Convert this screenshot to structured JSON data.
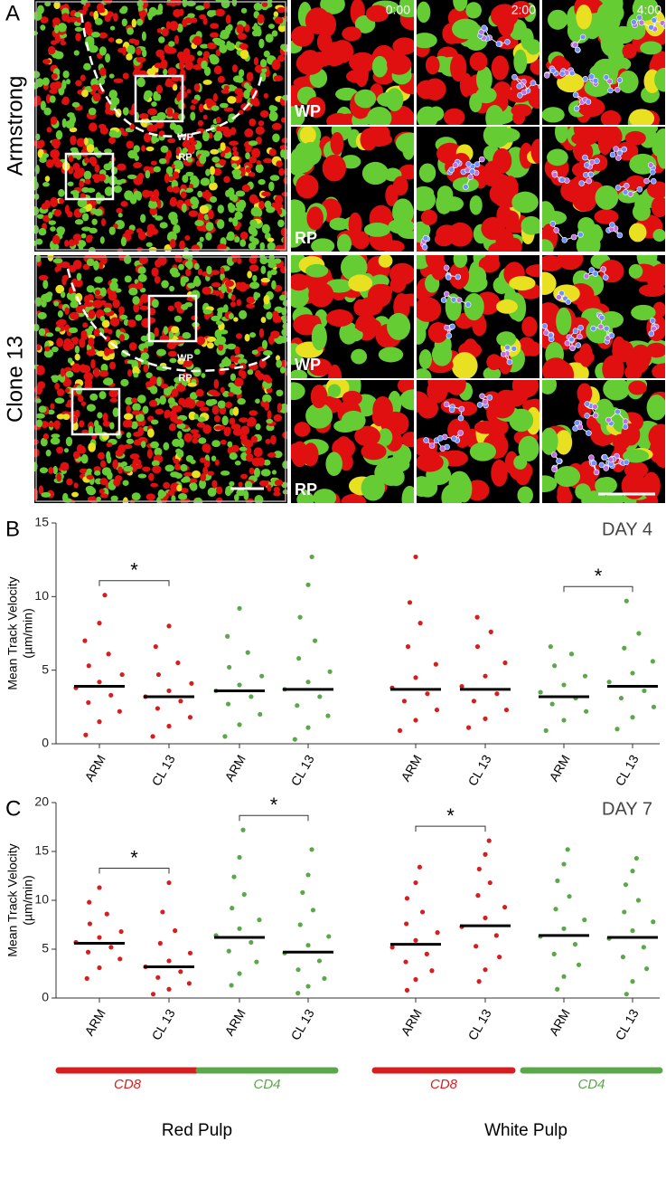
{
  "panel_a": {
    "label": "A",
    "times": [
      "0:00",
      "2:00",
      "4:00"
    ],
    "rows": [
      {
        "name": "Armstrong",
        "overview": [
          "WP",
          "RP"
        ],
        "tiles": [
          "WP",
          "RP"
        ]
      },
      {
        "name": "Clone 13",
        "overview": [
          "WP",
          "RP"
        ],
        "tiles": [
          "WP",
          "RP"
        ]
      }
    ]
  },
  "chart_data": [
    {
      "type": "strip",
      "panel": "B",
      "title": "DAY 4",
      "ylabel": [
        "Mean Track Velocity",
        "(µm/min)"
      ],
      "ylim": [
        0,
        15
      ],
      "yticks": [
        0,
        5,
        10,
        15
      ],
      "categories": [
        "ARM",
        "CL 13",
        "ARM",
        "CL 13",
        "ARM",
        "CL 13",
        "ARM",
        "CL 13"
      ],
      "groups": [
        {
          "color": "#d71e1e",
          "mean": 3.9,
          "points": [
            0.6,
            1.5,
            2.2,
            2.8,
            3.3,
            3.8,
            4.2,
            4.7,
            5.3,
            6.1,
            7.0,
            8.2,
            10.1
          ]
        },
        {
          "color": "#d71e1e",
          "mean": 3.2,
          "points": [
            0.5,
            1.2,
            1.8,
            2.4,
            2.9,
            3.2,
            3.6,
            4.1,
            4.7,
            5.5,
            6.6,
            8.0
          ]
        },
        {
          "color": "#5aa84a",
          "mean": 3.6,
          "points": [
            0.5,
            1.3,
            2.0,
            2.7,
            3.2,
            3.6,
            4.0,
            4.6,
            5.2,
            6.2,
            7.3,
            9.2
          ]
        },
        {
          "color": "#5aa84a",
          "mean": 3.7,
          "points": [
            0.3,
            1.1,
            1.9,
            2.6,
            3.2,
            3.7,
            4.2,
            4.9,
            5.8,
            7.0,
            8.6,
            10.8,
            12.7
          ]
        },
        {
          "color": "#d71e1e",
          "mean": 3.7,
          "points": [
            0.9,
            1.6,
            2.3,
            2.9,
            3.4,
            3.8,
            4.5,
            5.4,
            6.6,
            8.2,
            9.6,
            12.7
          ]
        },
        {
          "color": "#d71e1e",
          "mean": 3.7,
          "points": [
            1.1,
            1.7,
            2.3,
            2.9,
            3.4,
            3.9,
            4.6,
            5.5,
            6.6,
            7.6,
            8.6
          ]
        },
        {
          "color": "#5aa84a",
          "mean": 3.2,
          "points": [
            0.9,
            1.6,
            2.2,
            2.7,
            3.1,
            3.5,
            4.0,
            4.6,
            5.3,
            6.1,
            6.6
          ]
        },
        {
          "color": "#5aa84a",
          "mean": 3.9,
          "points": [
            1.0,
            1.8,
            2.5,
            3.1,
            3.6,
            4.2,
            4.8,
            5.6,
            6.5,
            7.5,
            9.7
          ]
        }
      ],
      "significance": [
        {
          "groups": [
            0,
            1
          ],
          "label": "*"
        },
        {
          "groups": [
            6,
            7
          ],
          "label": "*"
        }
      ]
    },
    {
      "type": "strip",
      "panel": "C",
      "title": "DAY 7",
      "ylabel": [
        "Mean Track Velocity",
        "(µm/min)"
      ],
      "ylim": [
        0,
        20
      ],
      "yticks": [
        0,
        5,
        10,
        15,
        20
      ],
      "categories": [
        "ARM",
        "CL 13",
        "ARM",
        "CL 13",
        "ARM",
        "CL 13",
        "ARM",
        "CL 13"
      ],
      "groups": [
        {
          "color": "#d71e1e",
          "mean": 5.6,
          "points": [
            2.0,
            3.1,
            4.0,
            4.7,
            5.2,
            5.7,
            6.2,
            6.8,
            7.6,
            8.6,
            9.8,
            11.3
          ]
        },
        {
          "color": "#d71e1e",
          "mean": 3.2,
          "points": [
            0.4,
            0.9,
            1.5,
            2.1,
            2.7,
            3.2,
            3.8,
            4.6,
            5.6,
            6.9,
            8.8,
            11.8
          ]
        },
        {
          "color": "#5aa84a",
          "mean": 6.2,
          "points": [
            1.3,
            2.5,
            3.7,
            4.8,
            5.7,
            6.4,
            7.1,
            8.0,
            9.2,
            10.6,
            12.4,
            14.4,
            17.2
          ]
        },
        {
          "color": "#5aa84a",
          "mean": 4.7,
          "points": [
            0.5,
            1.2,
            2.0,
            2.9,
            3.8,
            4.6,
            5.4,
            6.3,
            7.5,
            9.0,
            10.8,
            12.6,
            15.2
          ]
        },
        {
          "color": "#d71e1e",
          "mean": 5.5,
          "points": [
            0.8,
            1.9,
            2.8,
            3.7,
            4.5,
            5.2,
            5.9,
            6.7,
            7.6,
            8.8,
            10.2,
            11.8,
            13.4
          ]
        },
        {
          "color": "#d71e1e",
          "mean": 7.4,
          "points": [
            1.7,
            2.9,
            4.2,
            5.3,
            6.4,
            7.3,
            8.2,
            9.3,
            10.5,
            11.8,
            13.2,
            14.7,
            16.1
          ]
        },
        {
          "color": "#5aa84a",
          "mean": 6.4,
          "points": [
            0.9,
            2.2,
            3.4,
            4.5,
            5.5,
            6.3,
            7.1,
            8.0,
            9.1,
            10.4,
            12.0,
            13.7,
            15.2
          ]
        },
        {
          "color": "#5aa84a",
          "mean": 6.2,
          "points": [
            0.4,
            1.7,
            3.0,
            4.2,
            5.2,
            6.1,
            6.9,
            7.8,
            8.8,
            10.0,
            11.6,
            13.0,
            14.3
          ]
        }
      ],
      "significance": [
        {
          "groups": [
            0,
            1
          ],
          "label": "*"
        },
        {
          "groups": [
            2,
            3
          ],
          "label": "*"
        },
        {
          "groups": [
            4,
            5
          ],
          "label": "*"
        }
      ],
      "subgroups": [
        {
          "label": "CD8",
          "color": "#d71e1e"
        },
        {
          "label": "CD4",
          "color": "#5aa84a"
        },
        {
          "label": "CD8",
          "color": "#d71e1e"
        },
        {
          "label": "CD4",
          "color": "#5aa84a"
        }
      ],
      "regions": [
        "Red Pulp",
        "White Pulp"
      ]
    }
  ]
}
